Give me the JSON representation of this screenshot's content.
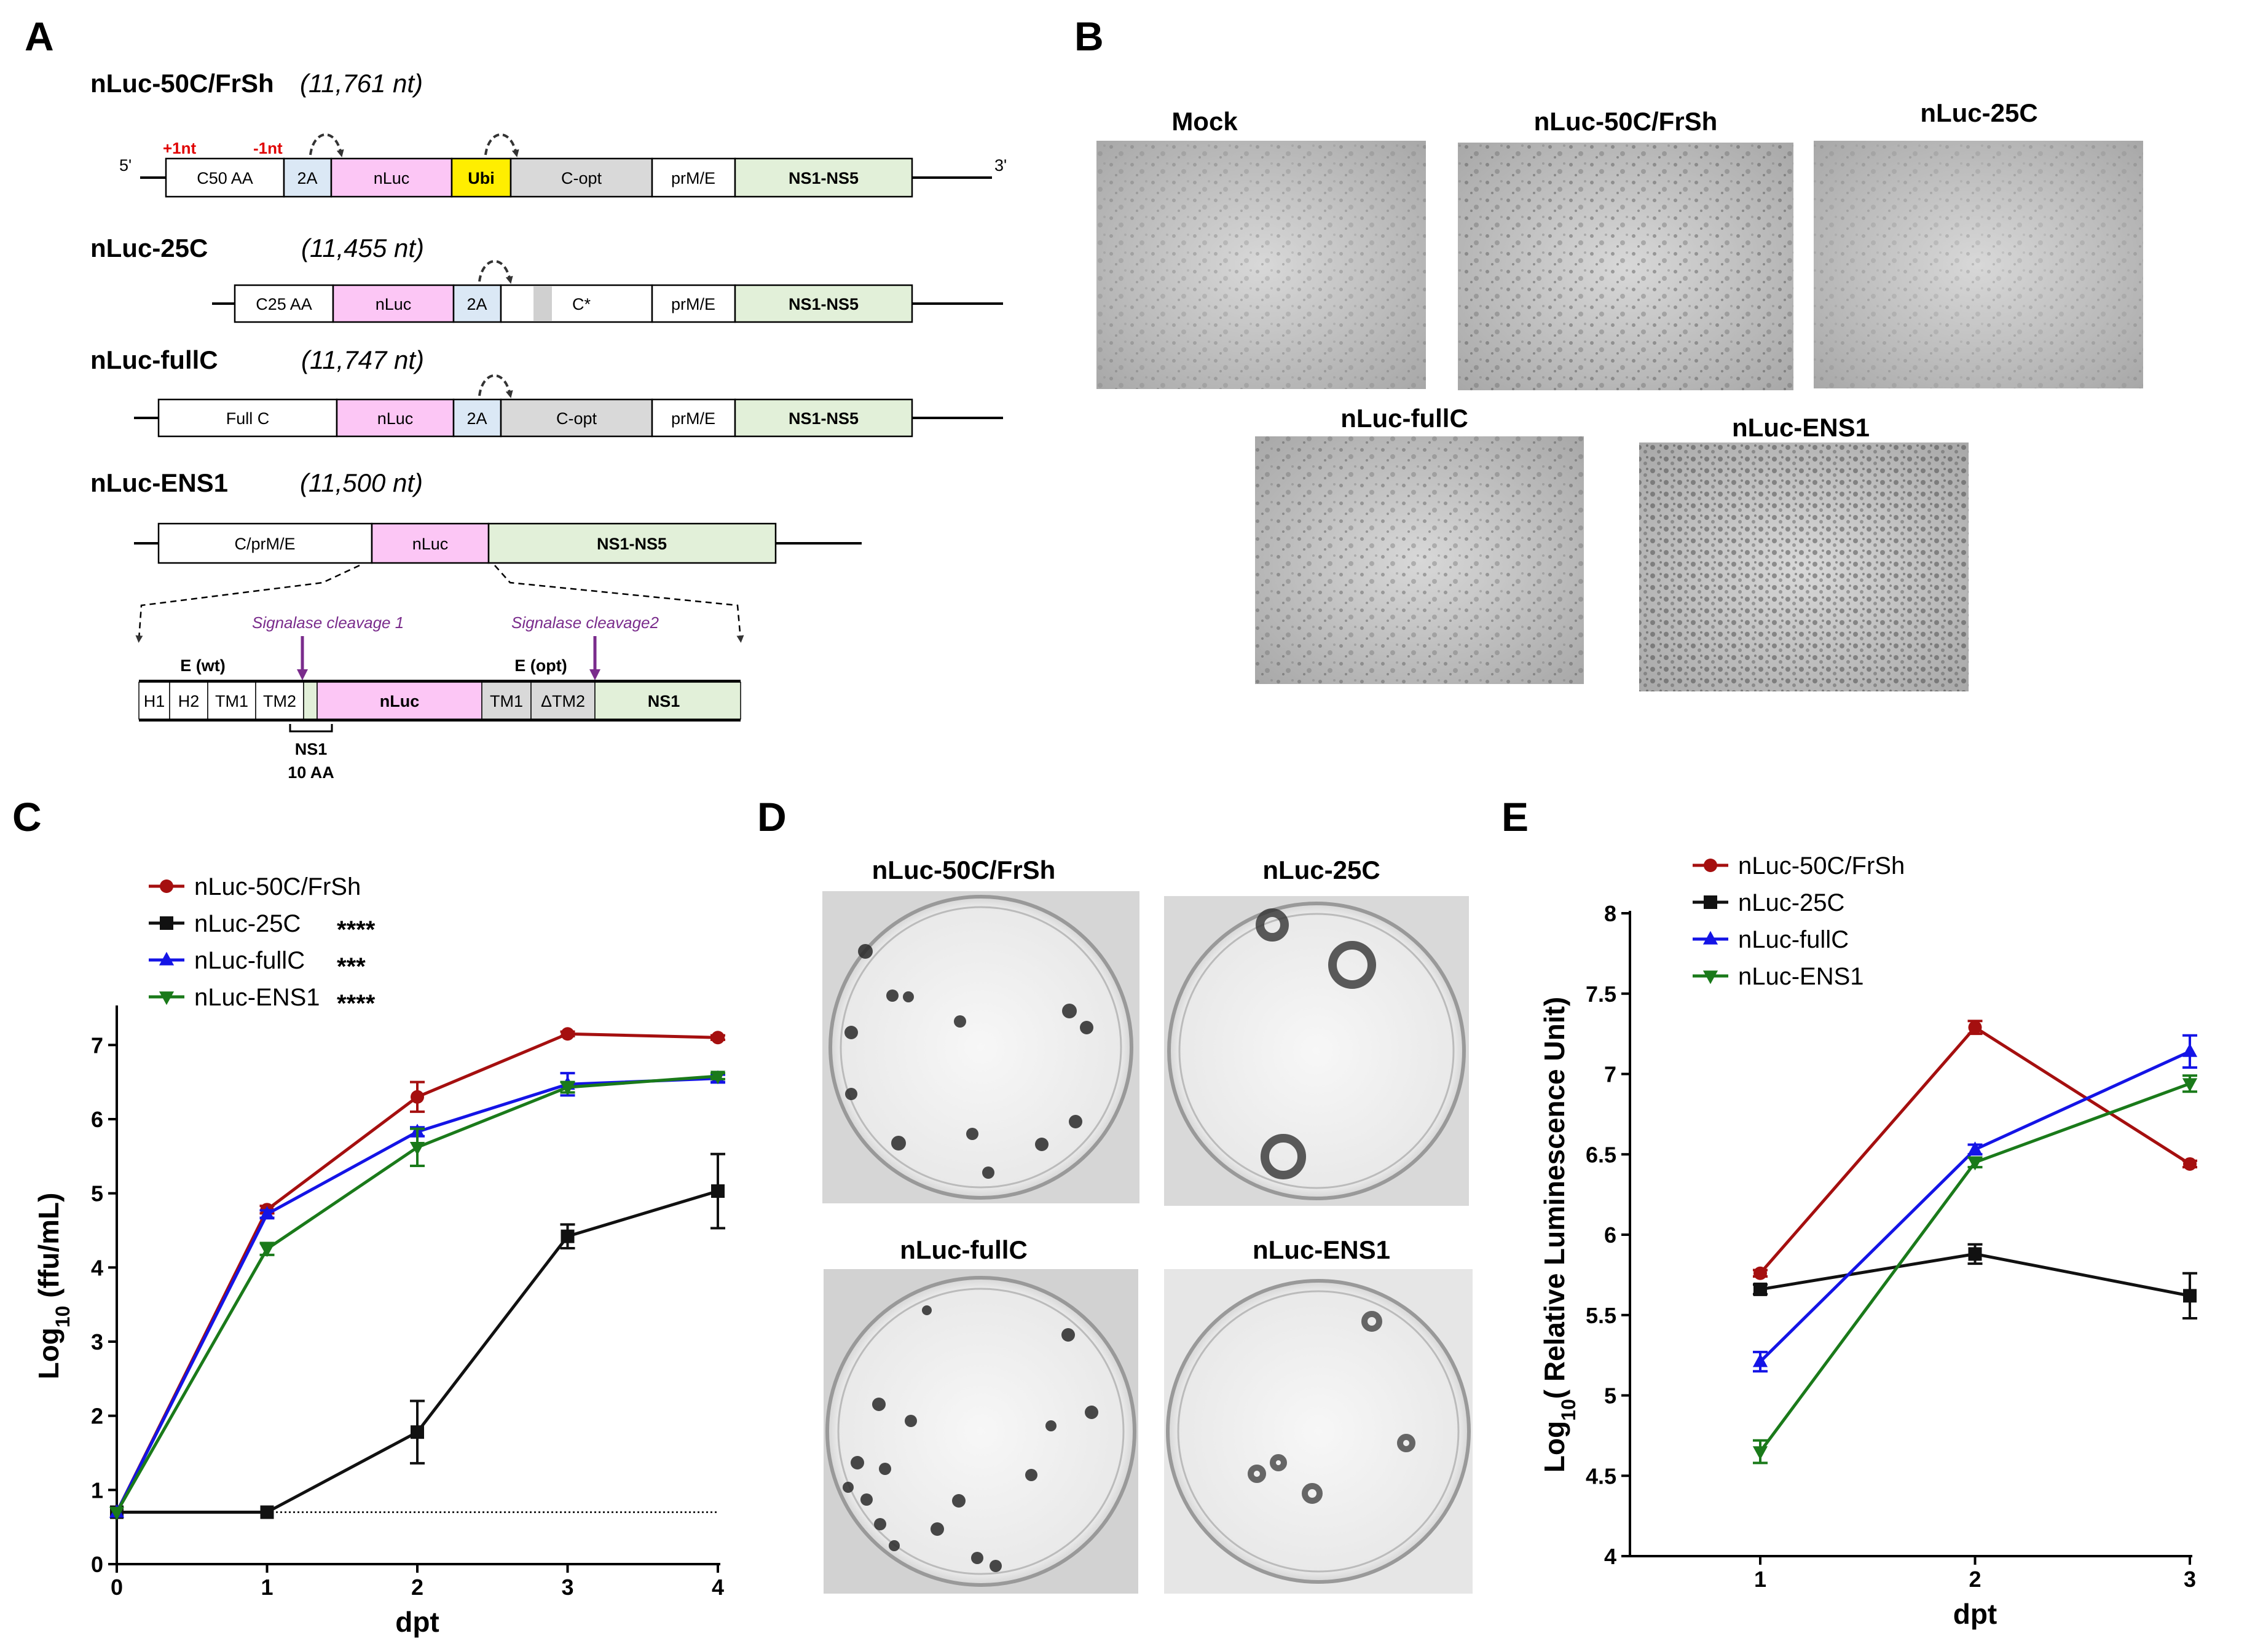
{
  "panel_labels": {
    "a": "A",
    "b": "B",
    "c": "C",
    "d": "D",
    "e": "E"
  },
  "panel_a": {
    "constructs": [
      {
        "name": "nLuc-50C/FrSh",
        "length": "(11,761 nt)"
      },
      {
        "name": "nLuc-25C",
        "length": "(11,455 nt)"
      },
      {
        "name": "nLuc-fullC",
        "length": "(11,747 nt)"
      },
      {
        "name": "nLuc-ENS1",
        "length": "(11,500 nt)"
      }
    ],
    "c1": {
      "five_prime": "5'",
      "three_prime": "3'",
      "plus1": "+1nt",
      "minus1": "-1nt",
      "segments": [
        "C50 AA",
        "2A",
        "nLuc",
        "Ubi",
        "C-opt",
        "prM/E",
        "NS1-NS5"
      ]
    },
    "c2": {
      "segments": [
        "C25 AA",
        "nLuc",
        "2A",
        "C*",
        "prM/E",
        "NS1-NS5"
      ]
    },
    "c3": {
      "segments": [
        "Full C",
        "nLuc",
        "2A",
        "C-opt",
        "prM/E",
        "NS1-NS5"
      ]
    },
    "c4": {
      "segments": [
        "C/prM/E",
        "nLuc",
        "NS1-NS5"
      ]
    },
    "detail": {
      "cleavage1": "Signalase cleavage 1",
      "cleavage2": "Signalase cleavage2",
      "e_wt": "E (wt)",
      "e_opt": "E (opt)",
      "segments": [
        "H1",
        "H2",
        "TM1",
        "TM2",
        "nLuc",
        "TM1",
        "ΔTM2",
        "NS1"
      ],
      "ns1_label": "NS1",
      "aa_label": "10 AA"
    }
  },
  "panel_b": {
    "titles": [
      "Mock",
      "nLuc-50C/FrSh",
      "nLuc-25C",
      "nLuc-fullC",
      "nLuc-ENS1"
    ]
  },
  "panel_d": {
    "titles": [
      "nLuc-50C/FrSh",
      "nLuc-25C",
      "nLuc-fullC",
      "nLuc-ENS1"
    ]
  },
  "colors": {
    "red": "#a50f0f",
    "black": "#111111",
    "blue": "#1414e6",
    "green": "#1a7a1a",
    "pink": "#fcc6f5",
    "lightblue": "#dbe8f5",
    "yellow": "#ffee00",
    "grey": "#d9d9d9",
    "lightgreen": "#e2f0d9",
    "purple": "#7a2c8c"
  },
  "chart_data": [
    {
      "panel": "C",
      "type": "line",
      "xlabel": "dpt",
      "ylabel_main": "Log",
      "ylabel_sub": "10",
      "ylabel_rest": " (ffu/mL)",
      "x": [
        0,
        1,
        2,
        3,
        4
      ],
      "xlim": [
        0,
        4
      ],
      "ylim": [
        0,
        7.5
      ],
      "xticks": [
        "0",
        "1",
        "2",
        "3",
        "4"
      ],
      "yticks": [
        "0",
        "1",
        "2",
        "3",
        "4",
        "5",
        "6",
        "7"
      ],
      "limit_of_detection": 0.7,
      "series": [
        {
          "name": "nLuc-50C/FrSh",
          "marker": "circle",
          "color": "#a50f0f",
          "sig": "",
          "values": [
            0.7,
            4.78,
            6.3,
            7.15,
            7.1
          ],
          "err": [
            0,
            0.05,
            0.2,
            0.03,
            0.03
          ]
        },
        {
          "name": "nLuc-25C",
          "marker": "square",
          "color": "#111111",
          "sig": "****",
          "values": [
            0.7,
            0.7,
            1.78,
            4.42,
            5.03
          ],
          "err": [
            0,
            0,
            0.42,
            0.16,
            0.5
          ]
        },
        {
          "name": "nLuc-fullC",
          "marker": "triangle-up",
          "color": "#1414e6",
          "sig": "***",
          "values": [
            0.7,
            4.72,
            5.83,
            6.47,
            6.55
          ],
          "err": [
            0,
            0.05,
            0.06,
            0.15,
            0.05
          ]
        },
        {
          "name": "nLuc-ENS1",
          "marker": "triangle-down",
          "color": "#1a7a1a",
          "sig": "****",
          "values": [
            0.7,
            4.25,
            5.62,
            6.43,
            6.58
          ],
          "err": [
            0,
            0.08,
            0.25,
            0.07,
            0.04
          ]
        }
      ]
    },
    {
      "panel": "E",
      "type": "line",
      "xlabel": "dpt",
      "ylabel_main": "Log",
      "ylabel_sub": "10",
      "ylabel_rest": "( Relative Luminescence Unit)",
      "x": [
        1,
        2,
        3
      ],
      "xlim": [
        1,
        3
      ],
      "ylim": [
        4,
        8
      ],
      "xticks": [
        "1",
        "2",
        "3"
      ],
      "yticks": [
        "4",
        "4.5",
        "5",
        "5.5",
        "6",
        "6.5",
        "7",
        "7.5",
        "8"
      ],
      "series": [
        {
          "name": "nLuc-50C/FrSh",
          "marker": "circle",
          "color": "#a50f0f",
          "values": [
            5.76,
            7.29,
            6.44
          ],
          "err": [
            0.02,
            0.04,
            0.02
          ]
        },
        {
          "name": "nLuc-25C",
          "marker": "square",
          "color": "#111111",
          "values": [
            5.66,
            5.88,
            5.62
          ],
          "err": [
            0.03,
            0.06,
            0.14
          ]
        },
        {
          "name": "nLuc-fullC",
          "marker": "triangle-up",
          "color": "#1414e6",
          "values": [
            5.21,
            6.53,
            7.14
          ],
          "err": [
            0.06,
            0.03,
            0.1
          ]
        },
        {
          "name": "nLuc-ENS1",
          "marker": "triangle-down",
          "color": "#1a7a1a",
          "values": [
            4.65,
            6.45,
            6.94
          ],
          "err": [
            0.07,
            0.03,
            0.05
          ]
        }
      ]
    }
  ]
}
